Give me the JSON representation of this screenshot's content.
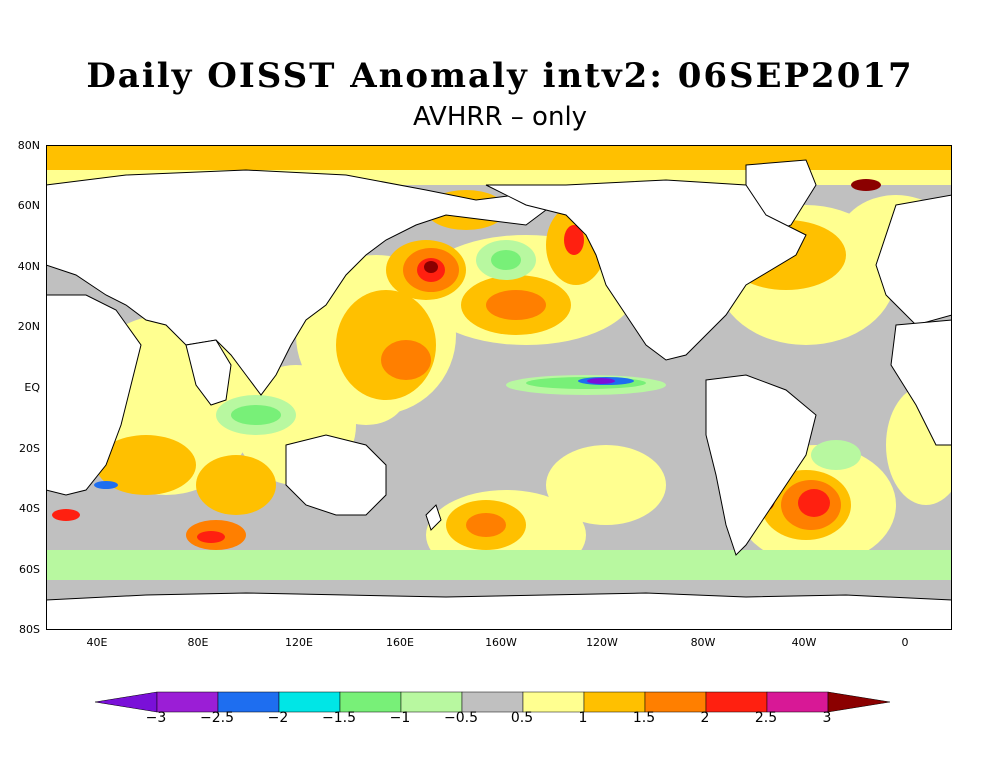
{
  "title": "Daily OISST Anomaly intv2: 06SEP2017",
  "subtitle": "AVHRR – only",
  "map": {
    "lat_labels": [
      "80N",
      "60N",
      "40N",
      "20N",
      "EQ",
      "20S",
      "40S",
      "60S",
      "80S"
    ],
    "lon_labels": [
      "40E",
      "80E",
      "120E",
      "160E",
      "160W",
      "120W",
      "80W",
      "40W",
      "0"
    ]
  },
  "colorbar": {
    "labels": [
      "−3",
      "−2.5",
      "−2",
      "−1.5",
      "−1",
      "−0.5",
      "0.5",
      "1",
      "1.5",
      "2",
      "2.5",
      "3"
    ],
    "colors": [
      "#7a10d8",
      "#9b1ed6",
      "#1e6ef0",
      "#00e6e6",
      "#78f078",
      "#b8f8a0",
      "#c0c0c0",
      "#ffff90",
      "#ffc000",
      "#ff7f00",
      "#ff2010",
      "#d81896",
      "#8b0000"
    ]
  }
}
